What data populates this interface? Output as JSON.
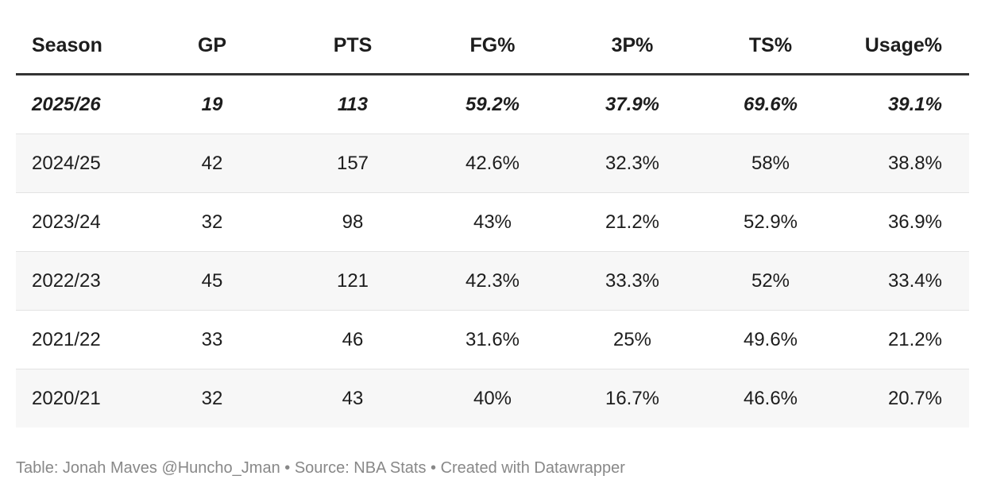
{
  "table": {
    "headers": [
      "Season",
      "GP",
      "PTS",
      "FG%",
      "3P%",
      "TS%",
      "Usage%"
    ],
    "rows": [
      [
        "2025/26",
        "19",
        "113",
        "59.2%",
        "37.9%",
        "69.6%",
        "39.1%"
      ],
      [
        "2024/25",
        "42",
        "157",
        "42.6%",
        "32.3%",
        "58%",
        "38.8%"
      ],
      [
        "2023/24",
        "32",
        "98",
        "43%",
        "21.2%",
        "52.9%",
        "36.9%"
      ],
      [
        "2022/23",
        "45",
        "121",
        "42.3%",
        "33.3%",
        "52%",
        "33.4%"
      ],
      [
        "2021/22",
        "33",
        "46",
        "31.6%",
        "25%",
        "49.6%",
        "21.2%"
      ],
      [
        "2020/21",
        "32",
        "43",
        "40%",
        "16.7%",
        "46.6%",
        "20.7%"
      ]
    ]
  },
  "footer": "Table: Jonah Maves @Huncho_Jman • Source: NBA Stats • Created with Datawrapper"
}
